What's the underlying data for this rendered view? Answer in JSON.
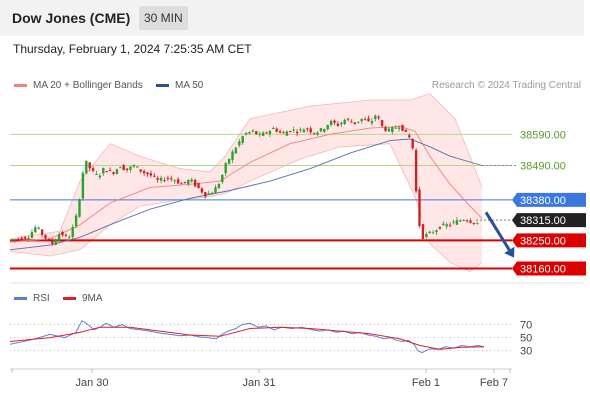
{
  "header": {
    "title": "Dow Jones (CME)",
    "interval": "30 MIN"
  },
  "datetime": "Thursday, February 1, 2024 7:25:35 AM CET",
  "legend": {
    "bollinger": {
      "label": "MA 20 + Bollinger Bands",
      "color": "#f08080"
    },
    "ma50": {
      "label": "MA 50",
      "color": "#2f4f8f"
    }
  },
  "credit": "Research © 2024 Trading Central",
  "rsi_legend": {
    "rsi": {
      "label": "RSI",
      "color": "#5b7fd6"
    },
    "ma9": {
      "label": "9MA",
      "color": "#dd2222"
    }
  },
  "colors": {
    "bull": "#2ca02c",
    "bear": "#cc2222",
    "support": "#dd0000",
    "resistance": "#3a78e0",
    "target": "#5a9a2a",
    "arrow": "#2a4f9a",
    "band": "#ffe1e1"
  },
  "chart_data": {
    "type": "line",
    "price_axis": {
      "ylim": [
        38120,
        38700
      ]
    },
    "x_labels": [
      "Jan 30",
      "Jan 31",
      "Feb 1",
      "Feb 7"
    ],
    "levels": [
      {
        "label": "38590.00",
        "value": 38590,
        "kind": "target"
      },
      {
        "label": "38490.00",
        "value": 38490,
        "kind": "target"
      },
      {
        "label": "38380.00",
        "value": 38380,
        "kind": "resistance"
      },
      {
        "label": "38315.00",
        "value": 38315,
        "kind": "last"
      },
      {
        "label": "38250.00",
        "value": 38250,
        "kind": "support"
      },
      {
        "label": "38160.00",
        "value": 38160,
        "kind": "support"
      }
    ],
    "price_path": [
      [
        0,
        38250
      ],
      [
        20,
        38262
      ],
      [
        28,
        38295
      ],
      [
        36,
        38262
      ],
      [
        44,
        38240
      ],
      [
        52,
        38275
      ],
      [
        60,
        38255
      ],
      [
        66,
        38300
      ],
      [
        70,
        38350
      ],
      [
        74,
        38460
      ],
      [
        78,
        38500
      ],
      [
        84,
        38470
      ],
      [
        90,
        38455
      ],
      [
        96,
        38480
      ],
      [
        104,
        38465
      ],
      [
        112,
        38490
      ],
      [
        118,
        38475
      ],
      [
        126,
        38490
      ],
      [
        134,
        38470
      ],
      [
        142,
        38460
      ],
      [
        150,
        38440
      ],
      [
        158,
        38450
      ],
      [
        166,
        38445
      ],
      [
        174,
        38430
      ],
      [
        182,
        38445
      ],
      [
        190,
        38418
      ],
      [
        198,
        38395
      ],
      [
        206,
        38410
      ],
      [
        212,
        38440
      ],
      [
        218,
        38495
      ],
      [
        224,
        38530
      ],
      [
        230,
        38560
      ],
      [
        236,
        38590
      ],
      [
        244,
        38600
      ],
      [
        252,
        38585
      ],
      [
        260,
        38600
      ],
      [
        266,
        38610
      ],
      [
        274,
        38590
      ],
      [
        282,
        38605
      ],
      [
        290,
        38600
      ],
      [
        298,
        38610
      ],
      [
        306,
        38595
      ],
      [
        314,
        38605
      ],
      [
        322,
        38630
      ],
      [
        330,
        38620
      ],
      [
        338,
        38640
      ],
      [
        346,
        38625
      ],
      [
        354,
        38640
      ],
      [
        362,
        38625
      ],
      [
        368,
        38655
      ],
      [
        374,
        38615
      ],
      [
        380,
        38600
      ],
      [
        386,
        38610
      ],
      [
        392,
        38620
      ],
      [
        398,
        38590
      ],
      [
        404,
        38570
      ],
      [
        407,
        38450
      ],
      [
        410,
        38320
      ],
      [
        414,
        38260
      ],
      [
        420,
        38270
      ],
      [
        426,
        38280
      ],
      [
        432,
        38295
      ],
      [
        440,
        38300
      ],
      [
        448,
        38310
      ],
      [
        456,
        38320
      ],
      [
        464,
        38310
      ],
      [
        472,
        38305
      ]
    ],
    "ma20_path": [
      [
        0,
        38245
      ],
      [
        40,
        38255
      ],
      [
        70,
        38300
      ],
      [
        100,
        38370
      ],
      [
        140,
        38420
      ],
      [
        180,
        38430
      ],
      [
        210,
        38440
      ],
      [
        240,
        38500
      ],
      [
        280,
        38560
      ],
      [
        320,
        38590
      ],
      [
        360,
        38610
      ],
      [
        390,
        38615
      ],
      [
        405,
        38600
      ],
      [
        420,
        38520
      ],
      [
        440,
        38430
      ],
      [
        460,
        38360
      ],
      [
        472,
        38320
      ]
    ],
    "ma50_path": [
      [
        0,
        38220
      ],
      [
        40,
        38235
      ],
      [
        70,
        38260
      ],
      [
        100,
        38300
      ],
      [
        140,
        38350
      ],
      [
        180,
        38385
      ],
      [
        220,
        38410
      ],
      [
        260,
        38440
      ],
      [
        300,
        38480
      ],
      [
        340,
        38530
      ],
      [
        380,
        38570
      ],
      [
        400,
        38575
      ],
      [
        420,
        38550
      ],
      [
        440,
        38520
      ],
      [
        472,
        38490
      ]
    ],
    "band_upper": [
      [
        0,
        38255
      ],
      [
        50,
        38280
      ],
      [
        70,
        38440
      ],
      [
        100,
        38560
      ],
      [
        130,
        38520
      ],
      [
        170,
        38480
      ],
      [
        200,
        38470
      ],
      [
        215,
        38520
      ],
      [
        240,
        38640
      ],
      [
        300,
        38680
      ],
      [
        360,
        38700
      ],
      [
        400,
        38700
      ],
      [
        420,
        38720
      ],
      [
        445,
        38640
      ],
      [
        460,
        38520
      ],
      [
        472,
        38420
      ]
    ],
    "band_lower": [
      [
        472,
        38180
      ],
      [
        460,
        38150
      ],
      [
        440,
        38180
      ],
      [
        420,
        38240
      ],
      [
        405,
        38390
      ],
      [
        380,
        38560
      ],
      [
        330,
        38550
      ],
      [
        290,
        38510
      ],
      [
        240,
        38440
      ],
      [
        215,
        38400
      ],
      [
        200,
        38390
      ],
      [
        170,
        38380
      ],
      [
        130,
        38360
      ],
      [
        100,
        38300
      ],
      [
        70,
        38220
      ],
      [
        40,
        38200
      ],
      [
        0,
        38215
      ]
    ],
    "forecast_arrow": [
      [
        476,
        38340
      ],
      [
        504,
        38195
      ]
    ],
    "rsi": {
      "levels": [
        {
          "label": "70",
          "value": 70
        },
        {
          "label": "50",
          "value": 50
        },
        {
          "label": "30",
          "value": 30
        }
      ],
      "ylim": [
        5,
        100
      ],
      "rsi_path": [
        [
          0,
          40
        ],
        [
          20,
          46
        ],
        [
          40,
          55
        ],
        [
          55,
          50
        ],
        [
          66,
          58
        ],
        [
          72,
          76
        ],
        [
          78,
          70
        ],
        [
          84,
          62
        ],
        [
          90,
          66
        ],
        [
          96,
          72
        ],
        [
          104,
          66
        ],
        [
          112,
          70
        ],
        [
          120,
          64
        ],
        [
          130,
          62
        ],
        [
          140,
          60
        ],
        [
          150,
          57
        ],
        [
          160,
          55
        ],
        [
          170,
          53
        ],
        [
          180,
          54
        ],
        [
          190,
          51
        ],
        [
          198,
          50
        ],
        [
          206,
          48
        ],
        [
          212,
          55
        ],
        [
          218,
          60
        ],
        [
          226,
          64
        ],
        [
          232,
          70
        ],
        [
          240,
          72
        ],
        [
          248,
          66
        ],
        [
          256,
          68
        ],
        [
          264,
          62
        ],
        [
          272,
          66
        ],
        [
          282,
          64
        ],
        [
          292,
          66
        ],
        [
          302,
          62
        ],
        [
          310,
          60
        ],
        [
          318,
          62
        ],
        [
          326,
          58
        ],
        [
          334,
          60
        ],
        [
          342,
          56
        ],
        [
          350,
          58
        ],
        [
          358,
          54
        ],
        [
          366,
          52
        ],
        [
          374,
          48
        ],
        [
          380,
          50
        ],
        [
          386,
          46
        ],
        [
          392,
          44
        ],
        [
          398,
          46
        ],
        [
          404,
          40
        ],
        [
          408,
          30
        ],
        [
          412,
          27
        ],
        [
          420,
          33
        ],
        [
          428,
          32
        ],
        [
          436,
          36
        ],
        [
          444,
          34
        ],
        [
          452,
          38
        ],
        [
          460,
          36
        ],
        [
          468,
          38
        ],
        [
          474,
          36
        ]
      ],
      "ma9_path": [
        [
          0,
          44
        ],
        [
          40,
          50
        ],
        [
          70,
          58
        ],
        [
          90,
          66
        ],
        [
          120,
          66
        ],
        [
          150,
          60
        ],
        [
          180,
          54
        ],
        [
          210,
          52
        ],
        [
          240,
          64
        ],
        [
          270,
          66
        ],
        [
          300,
          64
        ],
        [
          330,
          60
        ],
        [
          360,
          56
        ],
        [
          390,
          48
        ],
        [
          410,
          38
        ],
        [
          430,
          32
        ],
        [
          450,
          35
        ],
        [
          474,
          36
        ]
      ]
    }
  }
}
